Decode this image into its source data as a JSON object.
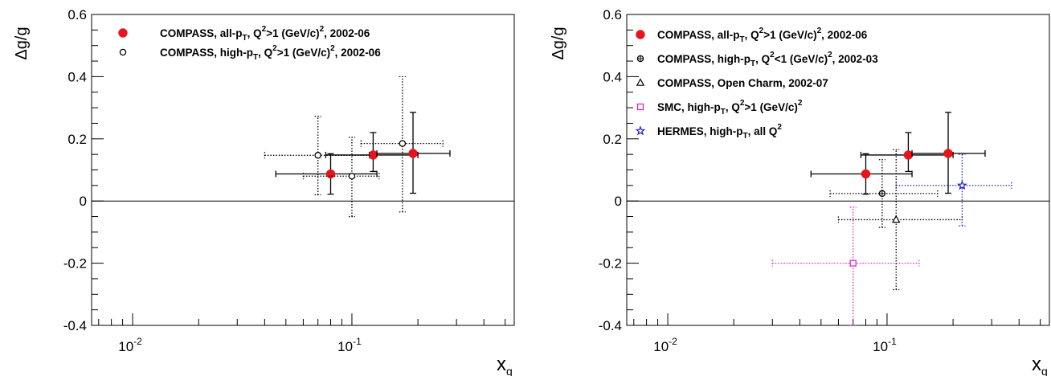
{
  "chart_data": [
    {
      "type": "scatter",
      "title": "",
      "xlabel": "x",
      "xlabel_sub": "g",
      "ylabel": "Δg/g",
      "xscale": "log",
      "xlim": [
        0.0065,
        0.55
      ],
      "ylim": [
        -0.4,
        0.6
      ],
      "yticks": [
        "-0.4",
        "-0.2",
        "0",
        "0.2",
        "0.4",
        "0.6"
      ],
      "xticks": [
        {
          "base": "10",
          "exp": "-2",
          "value": 0.01
        },
        {
          "base": "10",
          "exp": "-1",
          "value": 0.1
        }
      ],
      "zero_line": true,
      "legend_position": "top-left",
      "series": [
        {
          "name": "COMPASS, all-p_T, Q^2>1 (GeV/c)^2, 2002-06",
          "legend": {
            "pre": "COMPASS, all-p",
            "sub": "T",
            "mid": ", Q",
            "sup": "2",
            "post": ">1 (GeV/c)",
            "sup2": "2",
            "tail": ", 2002-06"
          },
          "marker": "filled-circle",
          "color": "#e8141c",
          "bar_color": "#000000",
          "bar_style": "solid",
          "points": [
            {
              "x": 0.08,
              "y": 0.087,
              "xlo": 0.045,
              "xhi": 0.13,
              "ylo": 0.022,
              "yhi": 0.152
            },
            {
              "x": 0.125,
              "y": 0.148,
              "xlo": 0.076,
              "xhi": 0.2,
              "ylo": 0.095,
              "yhi": 0.22
            },
            {
              "x": 0.19,
              "y": 0.153,
              "xlo": 0.13,
              "xhi": 0.28,
              "ylo": 0.025,
              "yhi": 0.285
            }
          ]
        },
        {
          "name": "COMPASS, high-p_T, Q^2>1 (GeV/c)^2, 2002-06",
          "legend": {
            "pre": "COMPASS, high-p",
            "sub": "T",
            "mid": ", Q",
            "sup": "2",
            "post": ">1 (GeV/c)",
            "sup2": "2",
            "tail": ", 2002-06"
          },
          "marker": "open-circle",
          "color": "#000000",
          "bar_color": "#000000",
          "bar_style": "dotted",
          "points": [
            {
              "x": 0.07,
              "y": 0.147,
              "xlo": 0.04,
              "xhi": 0.12,
              "ylo": 0.02,
              "yhi": 0.272
            },
            {
              "x": 0.1,
              "y": 0.08,
              "xlo": 0.06,
              "xhi": 0.133,
              "ylo": -0.05,
              "yhi": 0.205
            },
            {
              "x": 0.17,
              "y": 0.185,
              "xlo": 0.11,
              "xhi": 0.26,
              "ylo": -0.035,
              "yhi": 0.4
            }
          ]
        }
      ]
    },
    {
      "type": "scatter",
      "title": "",
      "xlabel": "x",
      "xlabel_sub": "g",
      "ylabel": "Δg/g",
      "xscale": "log",
      "xlim": [
        0.0065,
        0.55
      ],
      "ylim": [
        -0.4,
        0.6
      ],
      "yticks": [
        "-0.4",
        "-0.2",
        "0",
        "0.2",
        "0.4",
        "0.6"
      ],
      "xticks": [
        {
          "base": "10",
          "exp": "-2",
          "value": 0.01
        },
        {
          "base": "10",
          "exp": "-1",
          "value": 0.1
        }
      ],
      "zero_line": true,
      "legend_position": "top-left",
      "series": [
        {
          "name": "COMPASS, all-p_T, Q^2>1 (GeV/c)^2, 2002-06",
          "legend": {
            "pre": "COMPASS, all-p",
            "sub": "T",
            "mid": ", Q",
            "sup": "2",
            "post": ">1 (GeV/c)",
            "sup2": "2",
            "tail": ", 2002-06"
          },
          "marker": "filled-circle",
          "color": "#e8141c",
          "bar_color": "#000000",
          "bar_style": "solid",
          "points": [
            {
              "x": 0.08,
              "y": 0.087,
              "xlo": 0.045,
              "xhi": 0.13,
              "ylo": 0.022,
              "yhi": 0.152
            },
            {
              "x": 0.125,
              "y": 0.148,
              "xlo": 0.076,
              "xhi": 0.2,
              "ylo": 0.095,
              "yhi": 0.22
            },
            {
              "x": 0.19,
              "y": 0.153,
              "xlo": 0.13,
              "xhi": 0.28,
              "ylo": 0.025,
              "yhi": 0.285
            }
          ]
        },
        {
          "name": "COMPASS, high-p_T, Q^2<1 (GeV/c)^2, 2002-03",
          "legend": {
            "pre": "COMPASS, high-p",
            "sub": "T",
            "mid": ", Q",
            "sup": "2",
            "post": "<1 (GeV/c)",
            "sup2": "2",
            "tail": ", 2002-03"
          },
          "marker": "open-cross-circle",
          "color": "#000000",
          "bar_color": "#000000",
          "bar_style": "dotted",
          "points": [
            {
              "x": 0.095,
              "y": 0.024,
              "xlo": 0.055,
              "xhi": 0.17,
              "ylo": -0.085,
              "yhi": 0.133
            }
          ]
        },
        {
          "name": "COMPASS, Open Charm, 2002-07",
          "legend": {
            "pre": "COMPASS, Open Charm, 2002-07",
            "sub": "",
            "mid": "",
            "sup": "",
            "post": "",
            "sup2": "",
            "tail": ""
          },
          "marker": "open-triangle",
          "color": "#000000",
          "bar_color": "#000000",
          "bar_style": "dotted",
          "points": [
            {
              "x": 0.11,
              "y": -0.06,
              "xlo": 0.06,
              "xhi": 0.22,
              "ylo": -0.285,
              "yhi": 0.165
            }
          ]
        },
        {
          "name": "SMC, high-p_T, Q^2>1 (GeV/c)^2",
          "legend": {
            "pre": "SMC, high-p",
            "sub": "T",
            "mid": ", Q",
            "sup": "2",
            "post": ">1 (GeV/c)",
            "sup2": "2",
            "tail": ""
          },
          "marker": "open-square",
          "color": "#e020d0",
          "bar_color": "#e020d0",
          "bar_style": "dotted",
          "points": [
            {
              "x": 0.07,
              "y": -0.2,
              "xlo": 0.03,
              "xhi": 0.14,
              "ylo": -0.4,
              "yhi": -0.02
            }
          ]
        },
        {
          "name": "HERMES, high-p_T, all Q^2",
          "legend": {
            "pre": "HERMES, high-p",
            "sub": "T",
            "mid": ", all Q",
            "sup": "2",
            "post": "",
            "sup2": "",
            "tail": ""
          },
          "marker": "open-star",
          "color": "#1c1ccc",
          "bar_color": "#1c1ccc",
          "bar_style": "dotted",
          "points": [
            {
              "x": 0.22,
              "y": 0.05,
              "xlo": 0.11,
              "xhi": 0.37,
              "ylo": -0.08,
              "yhi": 0.15
            }
          ]
        }
      ]
    }
  ]
}
